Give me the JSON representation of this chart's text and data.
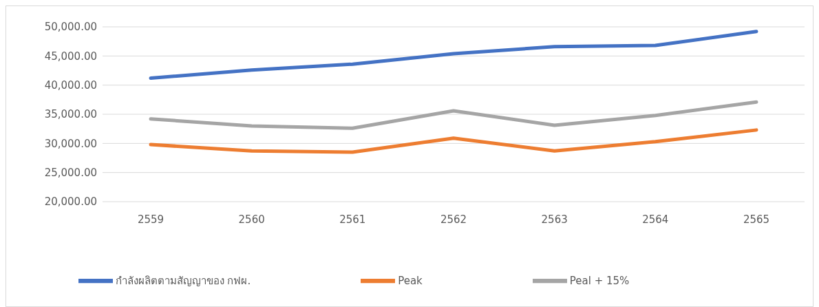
{
  "chart_data": {
    "type": "line",
    "categories": [
      "2559",
      "2560",
      "2561",
      "2562",
      "2563",
      "2564",
      "2565"
    ],
    "series": [
      {
        "name": "กำลังผลิตตามสัญญาของ กฟผ.",
        "color": "#4472c4",
        "values": [
          41200,
          42600,
          43600,
          45400,
          46600,
          46800,
          49200
        ]
      },
      {
        "name": "Peak",
        "color": "#ed7d31",
        "values": [
          29800,
          28700,
          28500,
          30900,
          28700,
          30300,
          32300
        ]
      },
      {
        "name": "Peal + 15%",
        "color": "#a5a5a5",
        "values": [
          34200,
          33000,
          32600,
          35600,
          33100,
          34800,
          37100
        ]
      }
    ],
    "ylim": [
      20000,
      50000
    ],
    "yticks": [
      {
        "value": 20000,
        "label": "20,000.00"
      },
      {
        "value": 25000,
        "label": "25,000.00"
      },
      {
        "value": 30000,
        "label": "30,000.00"
      },
      {
        "value": 35000,
        "label": "35,000.00"
      },
      {
        "value": 40000,
        "label": "40,000.00"
      },
      {
        "value": 45000,
        "label": "45,000.00"
      },
      {
        "value": 50000,
        "label": "50,000.00"
      }
    ],
    "grid": "y",
    "legend": "bottom",
    "marker": "none",
    "line_style": "solid"
  }
}
